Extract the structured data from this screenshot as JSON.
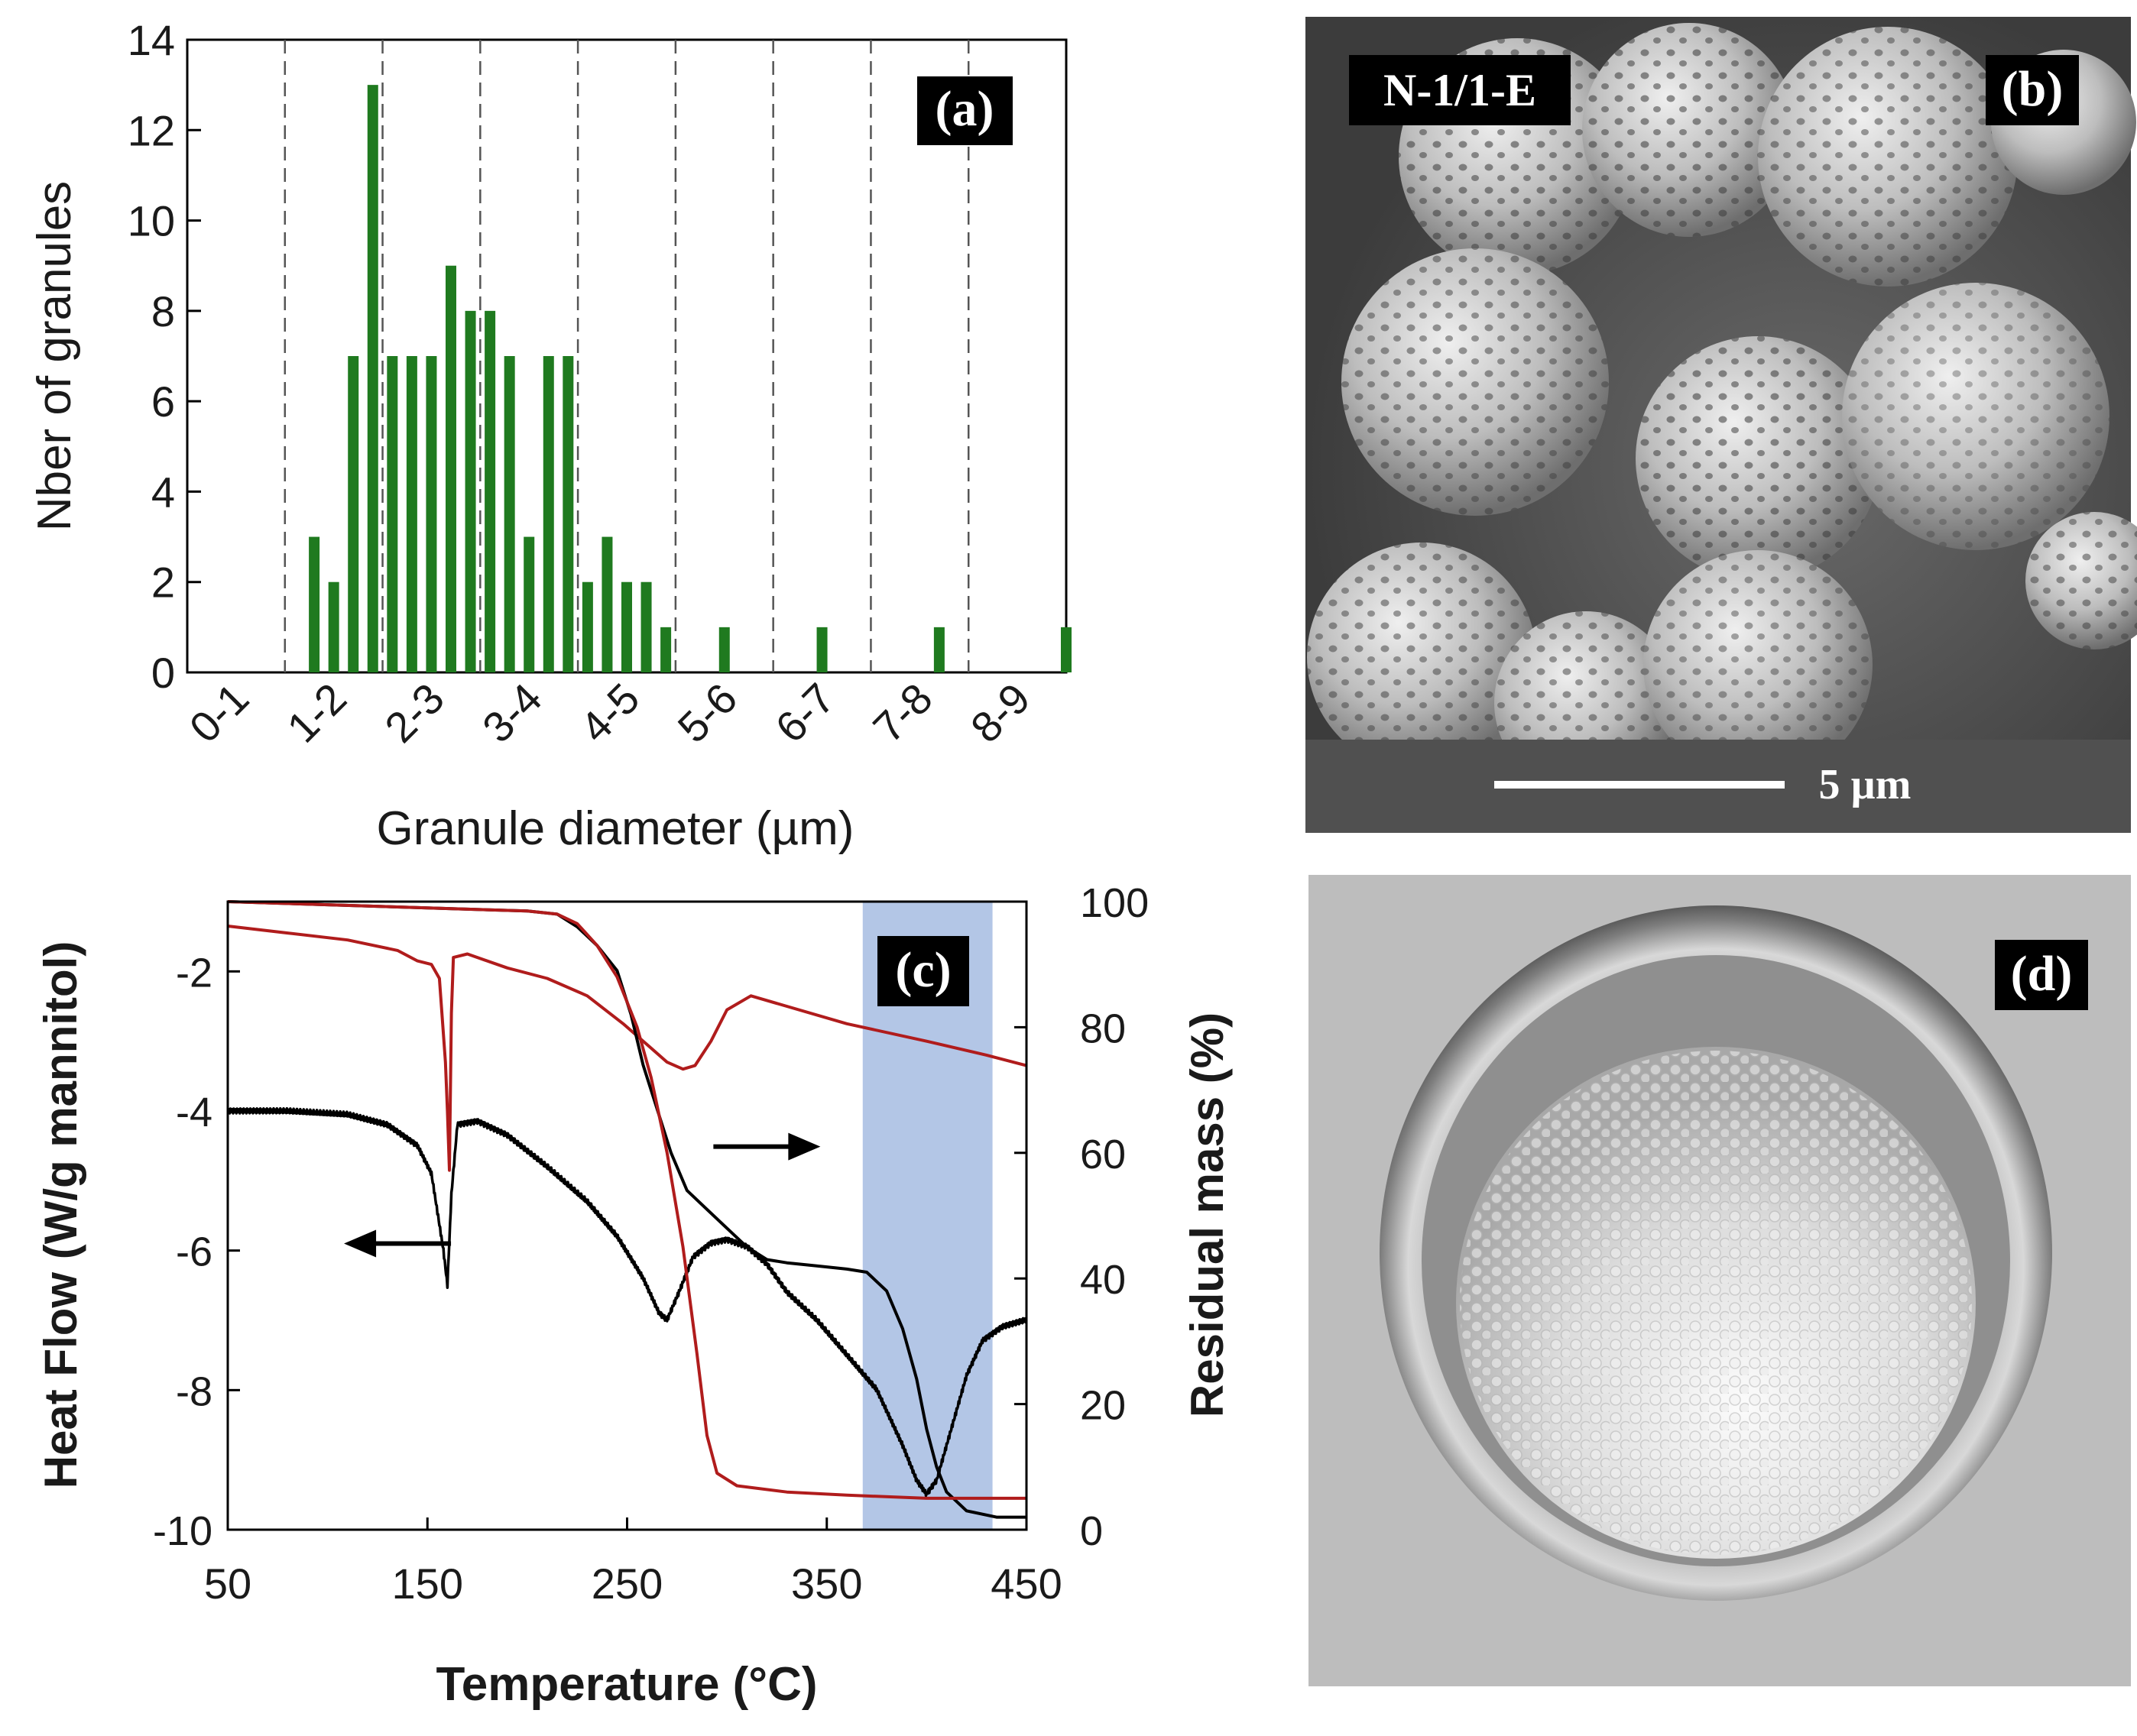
{
  "chart_data": [
    {
      "panel": "(a)",
      "type": "bar",
      "xlabel": "Granule diameter (µm)",
      "ylabel": "Nber of granules",
      "ylim": [
        0,
        14
      ],
      "yticks": [
        0,
        2,
        4,
        6,
        8,
        10,
        12,
        14
      ],
      "xlim": [
        0,
        9
      ],
      "bin_labels": [
        "0-1",
        "1-2",
        "2-3",
        "3-4",
        "4-5",
        "5-6",
        "6-7",
        "7-8",
        "8-9"
      ],
      "bin_boundaries": [
        1,
        2,
        3,
        4,
        5,
        6,
        7,
        8
      ],
      "bar_color": "#1f7a1f",
      "bars": [
        {
          "x": 1.3,
          "y": 3
        },
        {
          "x": 1.5,
          "y": 2
        },
        {
          "x": 1.7,
          "y": 7
        },
        {
          "x": 1.9,
          "y": 13
        },
        {
          "x": 2.1,
          "y": 7
        },
        {
          "x": 2.3,
          "y": 7
        },
        {
          "x": 2.5,
          "y": 7
        },
        {
          "x": 2.7,
          "y": 9
        },
        {
          "x": 2.9,
          "y": 8
        },
        {
          "x": 3.1,
          "y": 8
        },
        {
          "x": 3.3,
          "y": 7
        },
        {
          "x": 3.5,
          "y": 3
        },
        {
          "x": 3.7,
          "y": 7
        },
        {
          "x": 3.9,
          "y": 7
        },
        {
          "x": 4.1,
          "y": 2
        },
        {
          "x": 4.3,
          "y": 3
        },
        {
          "x": 4.5,
          "y": 2
        },
        {
          "x": 4.7,
          "y": 2
        },
        {
          "x": 4.9,
          "y": 1
        },
        {
          "x": 5.1,
          "y": 0
        },
        {
          "x": 5.5,
          "y": 1
        },
        {
          "x": 6.5,
          "y": 1
        },
        {
          "x": 7.7,
          "y": 1
        },
        {
          "x": 9.0,
          "y": 1
        }
      ],
      "annotation": "(a)",
      "grid": "dashed vertical lines at bin boundaries"
    },
    {
      "panel": "(c)",
      "type": "line",
      "xlabel": "Temperature (°C)",
      "ylabel": "Heat Flow (W/g mannitol)",
      "y2label": "Residual mass (%)",
      "xlim": [
        50,
        450
      ],
      "xticks": [
        50,
        150,
        250,
        350,
        450
      ],
      "ylim": [
        -10,
        -1
      ],
      "yticks": [
        -10,
        -8,
        -6,
        -4,
        -2
      ],
      "y2lim": [
        0,
        100
      ],
      "y2ticks": [
        0,
        20,
        40,
        60,
        80,
        100
      ],
      "highlight_band": {
        "x": [
          368,
          433
        ],
        "color": "#b3c6e6"
      },
      "annotation": "(c)",
      "arrows": [
        {
          "direction": "left",
          "axis": "heat flow",
          "at_x": 135,
          "at_y": -5.9
        },
        {
          "direction": "right",
          "axis": "residual mass",
          "at_x": 320,
          "at_y": 61
        }
      ],
      "series": [
        {
          "axis": "left",
          "color": "#000000",
          "noisy": true,
          "points": [
            [
              50,
              -4.0
            ],
            [
              80,
              -4.0
            ],
            [
              110,
              -4.05
            ],
            [
              130,
              -4.2
            ],
            [
              145,
              -4.5
            ],
            [
              152,
              -4.9
            ],
            [
              158,
              -6.0
            ],
            [
              160,
              -6.5
            ],
            [
              162,
              -5.2
            ],
            [
              165,
              -4.2
            ],
            [
              175,
              -4.15
            ],
            [
              190,
              -4.35
            ],
            [
              210,
              -4.8
            ],
            [
              230,
              -5.3
            ],
            [
              245,
              -5.8
            ],
            [
              258,
              -6.4
            ],
            [
              266,
              -6.9
            ],
            [
              270,
              -7.0
            ],
            [
              276,
              -6.6
            ],
            [
              283,
              -6.1
            ],
            [
              292,
              -5.9
            ],
            [
              300,
              -5.85
            ],
            [
              310,
              -5.95
            ],
            [
              320,
              -6.2
            ],
            [
              330,
              -6.6
            ],
            [
              345,
              -7.0
            ],
            [
              360,
              -7.5
            ],
            [
              375,
              -8.0
            ],
            [
              388,
              -8.8
            ],
            [
              395,
              -9.3
            ],
            [
              400,
              -9.5
            ],
            [
              405,
              -9.3
            ],
            [
              412,
              -8.6
            ],
            [
              420,
              -7.8
            ],
            [
              428,
              -7.3
            ],
            [
              438,
              -7.1
            ],
            [
              450,
              -7.0
            ]
          ]
        },
        {
          "axis": "left",
          "color": "#b01c1c",
          "points": [
            [
              50,
              -1.35
            ],
            [
              80,
              -1.45
            ],
            [
              110,
              -1.55
            ],
            [
              135,
              -1.7
            ],
            [
              145,
              -1.85
            ],
            [
              152,
              -1.9
            ],
            [
              156,
              -2.1
            ],
            [
              159,
              -3.3
            ],
            [
              160,
              -4.0
            ],
            [
              161,
              -4.85
            ],
            [
              162,
              -2.6
            ],
            [
              163,
              -1.8
            ],
            [
              170,
              -1.75
            ],
            [
              190,
              -1.95
            ],
            [
              210,
              -2.1
            ],
            [
              230,
              -2.35
            ],
            [
              248,
              -2.75
            ],
            [
              262,
              -3.1
            ],
            [
              270,
              -3.3
            ],
            [
              278,
              -3.4
            ],
            [
              284,
              -3.35
            ],
            [
              292,
              -3.0
            ],
            [
              300,
              -2.55
            ],
            [
              312,
              -2.35
            ],
            [
              330,
              -2.5
            ],
            [
              360,
              -2.75
            ],
            [
              400,
              -3.0
            ],
            [
              430,
              -3.2
            ],
            [
              450,
              -3.35
            ]
          ]
        },
        {
          "axis": "right",
          "color": "#000000",
          "points": [
            [
              50,
              100
            ],
            [
              100,
              99.5
            ],
            [
              150,
              99
            ],
            [
              200,
              98.5
            ],
            [
              215,
              98
            ],
            [
              225,
              96
            ],
            [
              235,
              93
            ],
            [
              245,
              89
            ],
            [
              252,
              82
            ],
            [
              258,
              74
            ],
            [
              265,
              67
            ],
            [
              272,
              60
            ],
            [
              280,
              54
            ],
            [
              290,
              51
            ],
            [
              300,
              48
            ],
            [
              310,
              45
            ],
            [
              320,
              43
            ],
            [
              330,
              42.5
            ],
            [
              345,
              42
            ],
            [
              360,
              41.5
            ],
            [
              370,
              41
            ],
            [
              380,
              38
            ],
            [
              388,
              32
            ],
            [
              395,
              24
            ],
            [
              400,
              16
            ],
            [
              405,
              10
            ],
            [
              410,
              6
            ],
            [
              420,
              3
            ],
            [
              435,
              2
            ],
            [
              450,
              2
            ]
          ]
        },
        {
          "axis": "right",
          "color": "#b01c1c",
          "points": [
            [
              50,
              100
            ],
            [
              100,
              99.5
            ],
            [
              150,
              99
            ],
            [
              200,
              98.5
            ],
            [
              215,
              98
            ],
            [
              225,
              96.5
            ],
            [
              235,
              93
            ],
            [
              245,
              88
            ],
            [
              255,
              80
            ],
            [
              262,
              72
            ],
            [
              270,
              60
            ],
            [
              278,
              45
            ],
            [
              285,
              28
            ],
            [
              290,
              15
            ],
            [
              295,
              9
            ],
            [
              305,
              7
            ],
            [
              330,
              6
            ],
            [
              360,
              5.5
            ],
            [
              400,
              5
            ],
            [
              450,
              5
            ]
          ]
        }
      ]
    }
  ],
  "panel_b": {
    "label": "(b)",
    "sample": "N-1/1-E",
    "scale_bar": "5 µm"
  },
  "panel_d": {
    "label": "(d)"
  }
}
